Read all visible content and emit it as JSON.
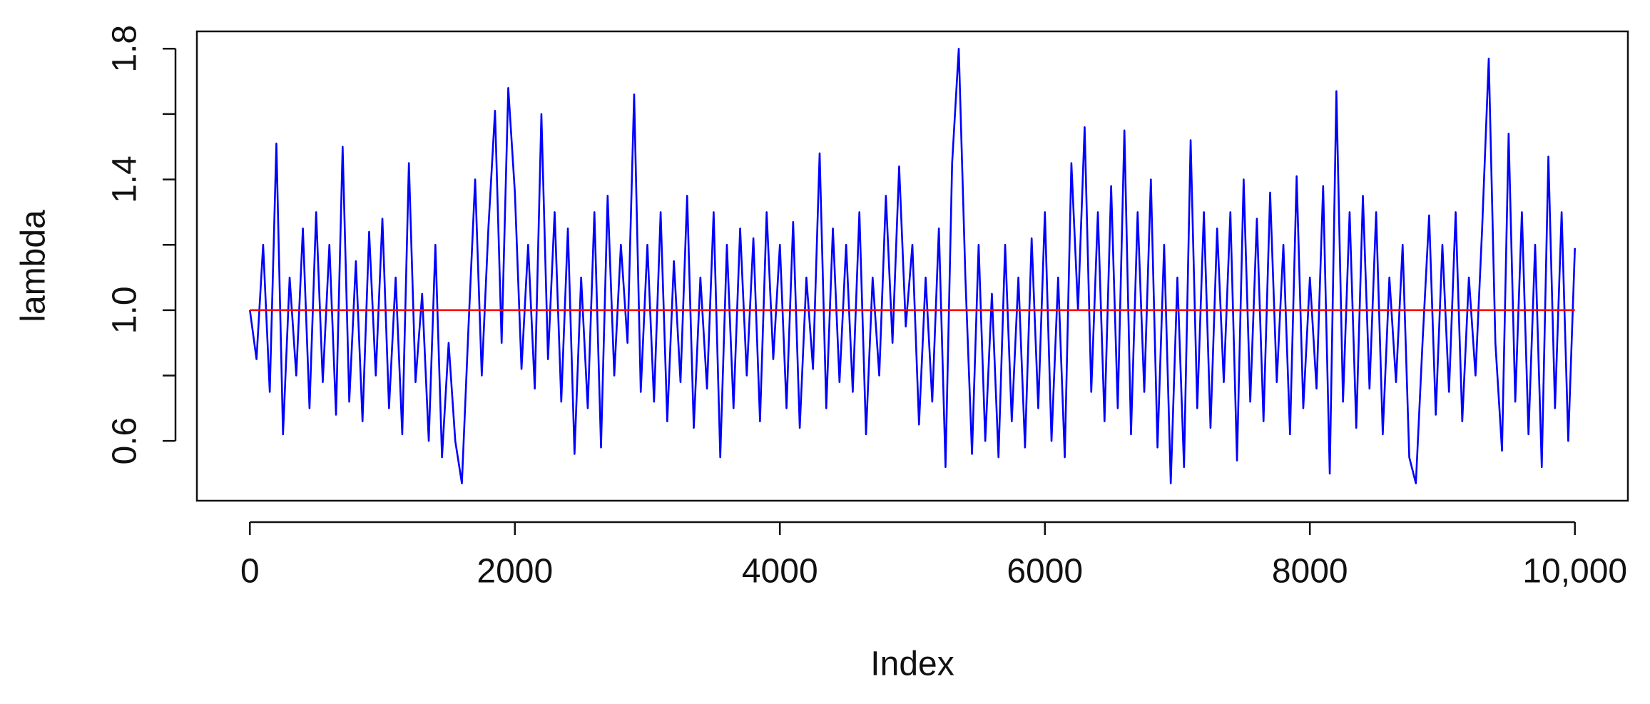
{
  "chart_data": {
    "type": "line",
    "x_label": "Index",
    "y_label": "lambda",
    "xlim": [
      -400,
      10400
    ],
    "ylim": [
      0.417,
      1.853
    ],
    "xticks": [
      0,
      2000,
      4000,
      6000,
      8000,
      {
        "value": 10000,
        "label": "10,000"
      }
    ],
    "yticks": [
      0.6,
      {
        "value": 0.8,
        "label": null
      },
      {
        "value": 1,
        "label": "1.0"
      },
      {
        "value": 1.2,
        "label": null
      },
      1.4,
      {
        "value": 1.6,
        "label": null
      },
      1.8
    ],
    "series": [
      {
        "color": "#0000ff",
        "x": [
          0,
          50,
          100,
          150,
          200,
          250,
          300,
          350,
          400,
          450,
          500,
          550,
          600,
          650,
          700,
          750,
          800,
          850,
          900,
          950,
          1000,
          1050,
          1100,
          1150,
          1200,
          1250,
          1300,
          1350,
          1400,
          1450,
          1500,
          1550,
          1600,
          1650,
          1700,
          1750,
          1800,
          1850,
          1900,
          1950,
          2000,
          2050,
          2100,
          2150,
          2200,
          2250,
          2300,
          2350,
          2400,
          2450,
          2500,
          2550,
          2600,
          2650,
          2700,
          2750,
          2800,
          2850,
          2900,
          2950,
          3000,
          3050,
          3100,
          3150,
          3200,
          3250,
          3300,
          3350,
          3400,
          3450,
          3500,
          3550,
          3600,
          3650,
          3700,
          3750,
          3800,
          3850,
          3900,
          3950,
          4000,
          4050,
          4100,
          4150,
          4200,
          4250,
          4300,
          4350,
          4400,
          4450,
          4500,
          4550,
          4600,
          4650,
          4700,
          4750,
          4800,
          4850,
          4900,
          4950,
          5000,
          5050,
          5100,
          5150,
          5200,
          5250,
          5300,
          5350,
          5400,
          5450,
          5500,
          5550,
          5600,
          5650,
          5700,
          5750,
          5800,
          5850,
          5900,
          5950,
          6000,
          6050,
          6100,
          6150,
          6200,
          6250,
          6300,
          6350,
          6400,
          6450,
          6500,
          6550,
          6600,
          6650,
          6700,
          6750,
          6800,
          6850,
          6900,
          6950,
          7000,
          7050,
          7100,
          7150,
          7200,
          7250,
          7300,
          7350,
          7400,
          7450,
          7500,
          7550,
          7600,
          7650,
          7700,
          7750,
          7800,
          7850,
          7900,
          7950,
          8000,
          8050,
          8100,
          8150,
          8200,
          8250,
          8300,
          8350,
          8400,
          8450,
          8500,
          8550,
          8600,
          8650,
          8700,
          8750,
          8800,
          8850,
          8900,
          8950,
          9000,
          9050,
          9100,
          9150,
          9200,
          9250,
          9300,
          9350,
          9400,
          9450,
          9500,
          9550,
          9600,
          9650,
          9700,
          9750,
          9800,
          9850,
          9900,
          9950,
          10000
        ],
        "values": [
          1.0,
          0.85,
          1.2,
          0.75,
          1.51,
          0.62,
          1.1,
          0.8,
          1.25,
          0.7,
          1.3,
          0.78,
          1.2,
          0.68,
          1.5,
          0.72,
          1.15,
          0.66,
          1.24,
          0.8,
          1.28,
          0.7,
          1.1,
          0.62,
          1.45,
          0.78,
          1.05,
          0.6,
          1.2,
          0.55,
          0.9,
          0.6,
          0.47,
          0.95,
          1.4,
          0.8,
          1.25,
          1.61,
          0.9,
          1.68,
          1.36,
          0.82,
          1.2,
          0.76,
          1.6,
          0.85,
          1.3,
          0.72,
          1.25,
          0.56,
          1.1,
          0.7,
          1.3,
          0.58,
          1.35,
          0.8,
          1.2,
          0.9,
          1.66,
          0.75,
          1.2,
          0.72,
          1.3,
          0.66,
          1.15,
          0.78,
          1.35,
          0.64,
          1.1,
          0.76,
          1.3,
          0.55,
          1.2,
          0.7,
          1.25,
          0.8,
          1.22,
          0.66,
          1.3,
          0.85,
          1.2,
          0.7,
          1.27,
          0.64,
          1.1,
          0.82,
          1.48,
          0.7,
          1.25,
          0.78,
          1.2,
          0.75,
          1.3,
          0.62,
          1.1,
          0.8,
          1.35,
          0.9,
          1.44,
          0.95,
          1.2,
          0.65,
          1.1,
          0.72,
          1.25,
          0.52,
          1.45,
          1.8,
          1.1,
          0.56,
          1.2,
          0.6,
          1.05,
          0.55,
          1.2,
          0.66,
          1.1,
          0.58,
          1.22,
          0.7,
          1.3,
          0.6,
          1.1,
          0.55,
          1.45,
          1.0,
          1.56,
          0.75,
          1.3,
          0.66,
          1.38,
          0.7,
          1.55,
          0.62,
          1.3,
          0.75,
          1.4,
          0.58,
          1.2,
          0.47,
          1.1,
          0.52,
          1.52,
          0.7,
          1.3,
          0.64,
          1.25,
          0.78,
          1.3,
          0.54,
          1.4,
          0.72,
          1.28,
          0.66,
          1.36,
          0.78,
          1.2,
          0.62,
          1.41,
          0.7,
          1.1,
          0.76,
          1.38,
          0.5,
          1.67,
          0.72,
          1.3,
          0.64,
          1.35,
          0.76,
          1.3,
          0.62,
          1.1,
          0.78,
          1.2,
          0.55,
          0.47,
          0.9,
          1.29,
          0.68,
          1.2,
          0.75,
          1.3,
          0.66,
          1.1,
          0.8,
          1.25,
          1.77,
          0.9,
          0.57,
          1.54,
          0.72,
          1.3,
          0.62,
          1.2,
          0.52,
          1.47,
          0.7,
          1.3,
          0.6,
          1.19
        ]
      },
      {
        "color": "#ff0000",
        "x": [
          0,
          10000
        ],
        "values": [
          1,
          1
        ]
      }
    ]
  }
}
